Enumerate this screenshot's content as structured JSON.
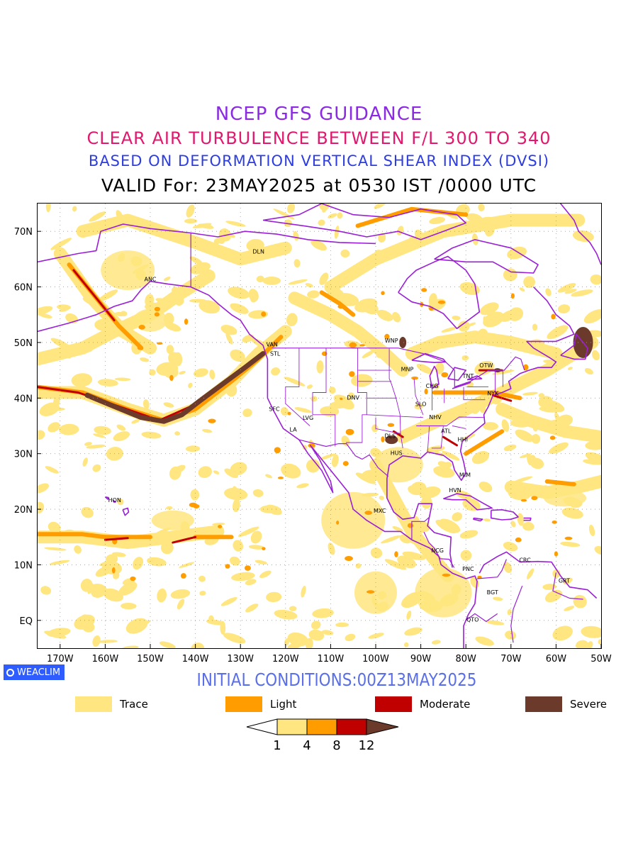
{
  "titles": {
    "line1": "NCEP GFS GUIDANCE",
    "line2": "CLEAR AIR TURBULENCE BETWEEN F/L 300 TO 340",
    "line3": "BASED ON DEFORMATION VERTICAL SHEAR INDEX (DVSI)",
    "line4": "VALID For: 23MAY2025 at 0530 IST /0000 UTC"
  },
  "axes": {
    "lon_labels": [
      "170W",
      "160W",
      "150W",
      "140W",
      "130W",
      "120W",
      "110W",
      "100W",
      "90W",
      "80W",
      "70W",
      "60W",
      "50W"
    ],
    "lat_labels": [
      "70N",
      "60N",
      "50N",
      "40N",
      "30N",
      "20N",
      "10N",
      "EQ"
    ],
    "lon_range": [
      -175,
      -50
    ],
    "lat_range": [
      -5,
      75
    ]
  },
  "stations": [
    {
      "code": "DLN",
      "lon": -126,
      "lat": 66
    },
    {
      "code": "ANC",
      "lon": -150,
      "lat": 61
    },
    {
      "code": "VAN",
      "lon": -123,
      "lat": 49.3
    },
    {
      "code": "STL",
      "lon": -122.3,
      "lat": 47.6
    },
    {
      "code": "WNP",
      "lon": -96.5,
      "lat": 50
    },
    {
      "code": "OTW",
      "lon": -75.5,
      "lat": 45.5
    },
    {
      "code": "MNP",
      "lon": -93,
      "lat": 44.8
    },
    {
      "code": "TNT",
      "lon": -79.5,
      "lat": 43.6
    },
    {
      "code": "CHG",
      "lon": -87.5,
      "lat": 41.8
    },
    {
      "code": "NYK",
      "lon": -74,
      "lat": 40.5
    },
    {
      "code": "DNV",
      "lon": -105,
      "lat": 39.7
    },
    {
      "code": "SFC",
      "lon": -122.5,
      "lat": 37.7
    },
    {
      "code": "SLO",
      "lon": -90,
      "lat": 38.6
    },
    {
      "code": "LVG",
      "lon": -115,
      "lat": 36.1
    },
    {
      "code": "NHV",
      "lon": -86.8,
      "lat": 36.2
    },
    {
      "code": "LA",
      "lon": -118.3,
      "lat": 34
    },
    {
      "code": "ATL",
      "lon": -84.4,
      "lat": 33.7
    },
    {
      "code": "DLS",
      "lon": -96.8,
      "lat": 32.8
    },
    {
      "code": "HHI",
      "lon": -80.7,
      "lat": 32.2
    },
    {
      "code": "HUS",
      "lon": -95.4,
      "lat": 29.8
    },
    {
      "code": "MIM",
      "lon": -80.2,
      "lat": 25.8
    },
    {
      "code": "HVN",
      "lon": -82.4,
      "lat": 23.1
    },
    {
      "code": "HON",
      "lon": -157.9,
      "lat": 21.3
    },
    {
      "code": "MXC",
      "lon": -99.1,
      "lat": 19.4
    },
    {
      "code": "NCG",
      "lon": -86.3,
      "lat": 12.2
    },
    {
      "code": "CRC",
      "lon": -66.9,
      "lat": 10.5
    },
    {
      "code": "PNC",
      "lon": -79.5,
      "lat": 8.9
    },
    {
      "code": "GRT",
      "lon": -58.2,
      "lat": 6.8
    },
    {
      "code": "BGT",
      "lon": -74.1,
      "lat": 4.7
    },
    {
      "code": "QTO",
      "lon": -78.5,
      "lat": -0.2
    }
  ],
  "badge": {
    "label": "WEACLIM"
  },
  "initial_conditions": "INITIAL CONDITIONS:00Z13MAY2025",
  "legend": [
    {
      "label": "Trace",
      "color": "#ffe680"
    },
    {
      "label": "Light",
      "color": "#ff9d00"
    },
    {
      "label": "Moderate",
      "color": "#c00000"
    },
    {
      "label": "Severe",
      "color": "#6b3a2a"
    }
  ],
  "colorbar": {
    "ticks": [
      "1",
      "4",
      "8",
      "12"
    ],
    "colors": [
      "#ffffff",
      "#ffe680",
      "#ff9d00",
      "#c00000",
      "#6b3a2a"
    ]
  },
  "colors": {
    "trace": "#ffe680",
    "light": "#ff9d00",
    "moderate": "#c00000",
    "severe": "#6b3a2a",
    "coastline": "#9a1fd6"
  }
}
